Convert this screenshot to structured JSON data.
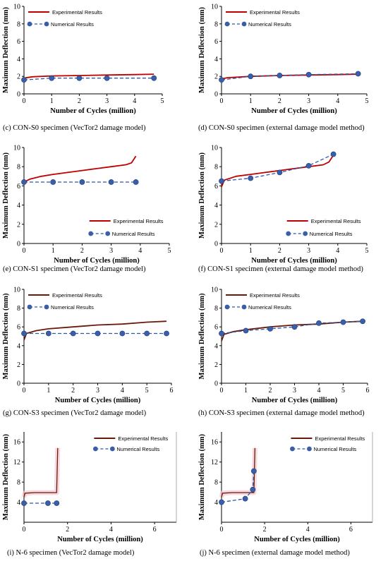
{
  "legend_labels": {
    "experimental": "Experimental Results",
    "numerical": "Numerical Results"
  },
  "colors": {
    "experimental_red": "#c00000",
    "experimental_brown": "#6b1a0a",
    "numerical": "#2e58a6",
    "marker_fill": "#3a5fa8",
    "glow": "#f2c8d2"
  },
  "chart_data": [
    {
      "id": "c",
      "type": "line",
      "caption": "(c) CON-S0 specimen (VecTor2 damage model)",
      "xlabel": "Number of Cycles (million)",
      "ylabel": "Maximum Deflection (mm)",
      "xlim": [
        0,
        5
      ],
      "ylim": [
        0,
        10
      ],
      "xticks": [
        "0",
        "1",
        "2",
        "3",
        "4",
        "5"
      ],
      "yticks": [
        "0",
        "2",
        "4",
        "6",
        "8",
        "10"
      ],
      "legend_position": "top-left",
      "series": [
        {
          "name": "Experimental Results",
          "style": "solid",
          "color": "#c00000",
          "points": [
            [
              0,
              1.8
            ],
            [
              0.3,
              1.95
            ],
            [
              1,
              2.05
            ],
            [
              2,
              2.1
            ],
            [
              3,
              2.15
            ],
            [
              4,
              2.2
            ],
            [
              4.7,
              2.25
            ]
          ]
        },
        {
          "name": "Numerical Results",
          "style": "dashed",
          "color": "#2e58a6",
          "points": [
            [
              0,
              1.6
            ],
            [
              1,
              1.8
            ],
            [
              2,
              1.8
            ],
            [
              3,
              1.8
            ],
            [
              4.7,
              1.8
            ]
          ]
        }
      ]
    },
    {
      "id": "d",
      "type": "line",
      "caption": "(d) CON-S0 specimen (external damage model method)",
      "xlabel": "Number of Cycles (million)",
      "ylabel": "Maximum Deflection (mm)",
      "xlim": [
        0,
        5
      ],
      "ylim": [
        0,
        10
      ],
      "xticks": [
        "0",
        "1",
        "2",
        "3",
        "4",
        "5"
      ],
      "yticks": [
        "0",
        "2",
        "4",
        "6",
        "8",
        "10"
      ],
      "legend_position": "top-left",
      "series": [
        {
          "name": "Experimental Results",
          "style": "solid",
          "color": "#c00000",
          "points": [
            [
              0,
              1.7
            ],
            [
              0.2,
              1.85
            ],
            [
              1,
              2.0
            ],
            [
              2,
              2.1
            ],
            [
              3,
              2.15
            ],
            [
              4,
              2.2
            ],
            [
              4.7,
              2.25
            ]
          ]
        },
        {
          "name": "Numerical Results",
          "style": "dashed",
          "color": "#2e58a6",
          "points": [
            [
              0,
              1.6
            ],
            [
              1,
              2.0
            ],
            [
              2,
              2.1
            ],
            [
              3,
              2.2
            ],
            [
              4.7,
              2.3
            ]
          ]
        }
      ]
    },
    {
      "id": "e",
      "type": "line",
      "caption": "(e) CON-S1 specimen (VecTor2 damage model)",
      "xlabel": "Number of Cycles (million)",
      "ylabel": "Maximum Deflection (mm)",
      "xlim": [
        0,
        5
      ],
      "ylim": [
        0,
        10
      ],
      "xticks": [
        "0",
        "1",
        "2",
        "3",
        "4",
        "5"
      ],
      "yticks": [
        "0",
        "2",
        "4",
        "6",
        "8",
        "10"
      ],
      "legend_position": "bottom-right",
      "series": [
        {
          "name": "Experimental Results",
          "style": "solid",
          "color": "#c00000",
          "points": [
            [
              0,
              6.4
            ],
            [
              0.2,
              6.7
            ],
            [
              0.6,
              7.0
            ],
            [
              1,
              7.2
            ],
            [
              1.5,
              7.4
            ],
            [
              2,
              7.6
            ],
            [
              2.5,
              7.8
            ],
            [
              3,
              8.0
            ],
            [
              3.5,
              8.2
            ],
            [
              3.7,
              8.4
            ],
            [
              3.85,
              9.1
            ]
          ]
        },
        {
          "name": "Numerical Results",
          "style": "dashed",
          "color": "#2e58a6",
          "points": [
            [
              0,
              6.4
            ],
            [
              1,
              6.4
            ],
            [
              2,
              6.4
            ],
            [
              3,
              6.4
            ],
            [
              3.85,
              6.4
            ]
          ]
        }
      ]
    },
    {
      "id": "f",
      "type": "line",
      "caption": "(f) CON-S1 specimen (external damage model method)",
      "xlabel": "Number of Cycles (million)",
      "ylabel": "Maximum Deflection (mm)",
      "xlim": [
        0,
        5
      ],
      "ylim": [
        0,
        10
      ],
      "xticks": [
        "0",
        "1",
        "2",
        "3",
        "4",
        "5"
      ],
      "yticks": [
        "0",
        "2",
        "4",
        "6",
        "8",
        "10"
      ],
      "legend_position": "bottom-right",
      "series": [
        {
          "name": "Experimental Results",
          "style": "solid",
          "color": "#c00000",
          "points": [
            [
              0,
              5.9
            ],
            [
              0.1,
              6.6
            ],
            [
              0.5,
              7.0
            ],
            [
              1,
              7.2
            ],
            [
              1.5,
              7.4
            ],
            [
              2,
              7.6
            ],
            [
              2.5,
              7.8
            ],
            [
              3,
              8.0
            ],
            [
              3.5,
              8.2
            ],
            [
              3.7,
              8.5
            ],
            [
              3.85,
              9.2
            ]
          ]
        },
        {
          "name": "Numerical Results",
          "style": "dashed",
          "color": "#2e58a6",
          "points": [
            [
              0,
              6.5
            ],
            [
              1,
              6.8
            ],
            [
              2,
              7.4
            ],
            [
              3,
              8.1
            ],
            [
              3.85,
              9.3
            ]
          ]
        }
      ]
    },
    {
      "id": "g",
      "type": "line",
      "caption": "(g) CON-S3 specimen (VecTor2 damage model)",
      "xlabel": "Number of Cycles (million)",
      "ylabel": "Maximum Deflection (mm)",
      "xlim": [
        0,
        6
      ],
      "ylim": [
        0,
        10
      ],
      "xticks": [
        "0",
        "1",
        "2",
        "3",
        "4",
        "5",
        "6"
      ],
      "yticks": [
        "0",
        "2",
        "4",
        "6",
        "8",
        "10"
      ],
      "legend_position": "top-left",
      "series": [
        {
          "name": "Experimental Results",
          "style": "solid",
          "color": "#6b1a0a",
          "points": [
            [
              0,
              4.6
            ],
            [
              0.1,
              5.3
            ],
            [
              0.5,
              5.6
            ],
            [
              1,
              5.8
            ],
            [
              2,
              6.0
            ],
            [
              3,
              6.2
            ],
            [
              4,
              6.3
            ],
            [
              5,
              6.5
            ],
            [
              5.8,
              6.6
            ]
          ]
        },
        {
          "name": "Numerical Results",
          "style": "dashed",
          "color": "#2e58a6",
          "points": [
            [
              0,
              5.3
            ],
            [
              1,
              5.3
            ],
            [
              2,
              5.3
            ],
            [
              3,
              5.3
            ],
            [
              4,
              5.3
            ],
            [
              5,
              5.3
            ],
            [
              5.8,
              5.3
            ]
          ]
        }
      ]
    },
    {
      "id": "h",
      "type": "line",
      "caption": "(h) CON-S3 specimen (external damage model method)",
      "xlabel": "Number of Cycles (million)",
      "ylabel": "Maximum Deflection (mm)",
      "xlim": [
        0,
        6
      ],
      "ylim": [
        0,
        10
      ],
      "xticks": [
        "0",
        "1",
        "2",
        "3",
        "4",
        "5",
        "6"
      ],
      "yticks": [
        "0",
        "2",
        "4",
        "6",
        "8",
        "10"
      ],
      "legend_position": "top-left",
      "series": [
        {
          "name": "Experimental Results",
          "style": "solid",
          "color": "#6b1a0a",
          "points": [
            [
              0,
              4.5
            ],
            [
              0.1,
              5.2
            ],
            [
              0.5,
              5.5
            ],
            [
              1,
              5.7
            ],
            [
              2,
              6.0
            ],
            [
              3,
              6.2
            ],
            [
              4,
              6.3
            ],
            [
              5,
              6.5
            ],
            [
              5.8,
              6.6
            ]
          ]
        },
        {
          "name": "Numerical Results",
          "style": "dashed",
          "color": "#2e58a6",
          "points": [
            [
              0,
              5.3
            ],
            [
              1,
              5.6
            ],
            [
              2,
              5.8
            ],
            [
              3,
              6.0
            ],
            [
              4,
              6.4
            ],
            [
              5,
              6.5
            ],
            [
              5.8,
              6.6
            ]
          ]
        }
      ]
    },
    {
      "id": "i",
      "type": "line",
      "caption": "(i) N-6 specimen (VecTor2 damage model)",
      "xlabel": "Number of Cycles (million)",
      "ylabel": "Maximum Deflection (mm)",
      "xlim": [
        0,
        7
      ],
      "ylim": [
        0,
        18
      ],
      "xticks": [
        "0",
        "2",
        "4",
        "6"
      ],
      "yticks": [
        "4",
        "8",
        "12",
        "16"
      ],
      "legend_position": "top-right",
      "series": [
        {
          "name": "Experimental Results",
          "style": "solid",
          "color": "#6b1a0a",
          "points": [
            [
              0,
              5.0
            ],
            [
              0.05,
              5.8
            ],
            [
              0.5,
              5.9
            ],
            [
              1.5,
              5.9
            ],
            [
              1.55,
              14.8
            ]
          ]
        },
        {
          "name": "Numerical Results",
          "style": "dashed",
          "color": "#2e58a6",
          "points": [
            [
              0,
              3.8
            ],
            [
              1.1,
              3.8
            ],
            [
              1.5,
              3.8
            ]
          ]
        }
      ]
    },
    {
      "id": "j",
      "type": "line",
      "caption": "(j) N-6 specimen (external damage model method)",
      "xlabel": "Number of Cycles (million)",
      "ylabel": "Maximum Deflection (mm)",
      "xlim": [
        0,
        7
      ],
      "ylim": [
        0,
        18
      ],
      "xticks": [
        "0",
        "2",
        "4",
        "6"
      ],
      "yticks": [
        "4",
        "8",
        "12",
        "16"
      ],
      "legend_position": "top-right",
      "series": [
        {
          "name": "Experimental Results",
          "style": "solid",
          "color": "#6b1a0a",
          "points": [
            [
              0,
              5.0
            ],
            [
              0.05,
              5.8
            ],
            [
              0.5,
              5.9
            ],
            [
              1.5,
              5.9
            ],
            [
              1.55,
              14.8
            ]
          ]
        },
        {
          "name": "Numerical Results",
          "style": "dashed",
          "color": "#2e58a6",
          "points": [
            [
              0,
              4.0
            ],
            [
              1.1,
              4.7
            ],
            [
              1.45,
              6.5
            ],
            [
              1.5,
              10.2
            ]
          ]
        }
      ]
    }
  ]
}
